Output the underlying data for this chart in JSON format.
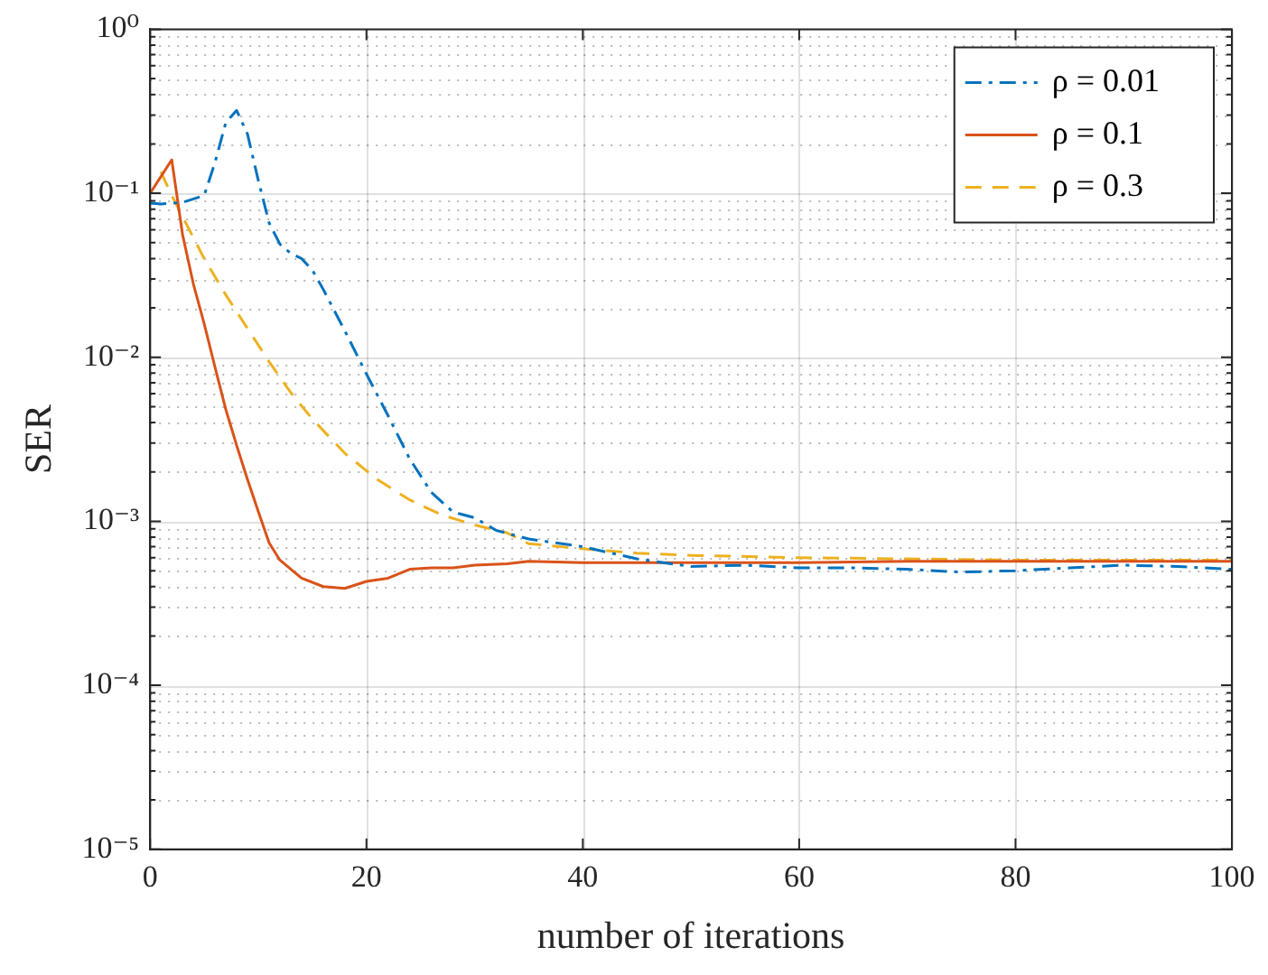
{
  "chart_data": {
    "type": "line",
    "xlabel": "number of iterations",
    "ylabel": "SER",
    "log": "y",
    "grid": true,
    "legend": "top right",
    "marker": "none",
    "xlim": [
      0,
      100
    ],
    "xticks": [
      0,
      20,
      40,
      60,
      80,
      100
    ],
    "ylim": [
      1e-05,
      1
    ],
    "yticks": [
      {
        "value": 1e-05,
        "label": "10⁻⁵"
      },
      {
        "value": 2e-05,
        "label": null
      },
      {
        "value": 3e-05,
        "label": null
      },
      {
        "value": 4e-05,
        "label": null
      },
      {
        "value": 5e-05,
        "label": null
      },
      {
        "value": 6e-05,
        "label": null
      },
      {
        "value": 7e-05,
        "label": null
      },
      {
        "value": 8e-05,
        "label": null
      },
      {
        "value": 9e-05,
        "label": null
      },
      {
        "value": 0.0001,
        "label": "10⁻⁴"
      },
      {
        "value": 0.0002,
        "label": null
      },
      {
        "value": 0.0003,
        "label": null
      },
      {
        "value": 0.0004,
        "label": null
      },
      {
        "value": 0.0005,
        "label": null
      },
      {
        "value": 0.0006,
        "label": null
      },
      {
        "value": 0.0007,
        "label": null
      },
      {
        "value": 0.0008,
        "label": null
      },
      {
        "value": 0.0009,
        "label": null
      },
      {
        "value": 0.001,
        "label": "10⁻³"
      },
      {
        "value": 0.002,
        "label": null
      },
      {
        "value": 0.003,
        "label": null
      },
      {
        "value": 0.004,
        "label": null
      },
      {
        "value": 0.005,
        "label": null
      },
      {
        "value": 0.006,
        "label": null
      },
      {
        "value": 0.007,
        "label": null
      },
      {
        "value": 0.008,
        "label": null
      },
      {
        "value": 0.009,
        "label": null
      },
      {
        "value": 0.01,
        "label": "10⁻²"
      },
      {
        "value": 0.02,
        "label": null
      },
      {
        "value": 0.03,
        "label": null
      },
      {
        "value": 0.04,
        "label": null
      },
      {
        "value": 0.05,
        "label": null
      },
      {
        "value": 0.06,
        "label": null
      },
      {
        "value": 0.07,
        "label": null
      },
      {
        "value": 0.08,
        "label": null
      },
      {
        "value": 0.09,
        "label": null
      },
      {
        "value": 0.1,
        "label": "10⁻¹"
      },
      {
        "value": 0.2,
        "label": null
      },
      {
        "value": 0.3,
        "label": null
      },
      {
        "value": 0.4,
        "label": null
      },
      {
        "value": 0.5,
        "label": null
      },
      {
        "value": 0.6,
        "label": null
      },
      {
        "value": 0.7,
        "label": null
      },
      {
        "value": 0.8,
        "label": null
      },
      {
        "value": 0.9,
        "label": null
      },
      {
        "value": 1,
        "label": "10⁰"
      }
    ],
    "series": [
      {
        "name": "ρ = 0.01",
        "color": "#0072bd",
        "line_style": "dashdot",
        "x": [
          0,
          1,
          3,
          5,
          6,
          7,
          8,
          9,
          10,
          11,
          12,
          13,
          14,
          15,
          16,
          18,
          20,
          22,
          24,
          26,
          28,
          30,
          32,
          35,
          40,
          45,
          50,
          55,
          60,
          65,
          70,
          75,
          80,
          85,
          90,
          95,
          100
        ],
        "values": [
          0.087,
          0.086,
          0.088,
          0.097,
          0.154,
          0.27,
          0.32,
          0.23,
          0.12,
          0.066,
          0.049,
          0.043,
          0.04,
          0.034,
          0.026,
          0.0145,
          0.0079,
          0.0044,
          0.0024,
          0.0015,
          0.00114,
          0.00105,
          0.00088,
          0.00078,
          0.0007,
          0.00059,
          0.00053,
          0.00054,
          0.00052,
          0.00052,
          0.00051,
          0.00049,
          0.0005,
          0.00052,
          0.00054,
          0.00053,
          0.00051
        ]
      },
      {
        "name": "ρ = 0.1",
        "color": "#d95319",
        "line_style": "solid",
        "x": [
          0,
          2,
          3,
          4,
          5,
          6,
          7,
          8,
          9,
          10,
          11,
          12,
          14,
          16,
          18,
          20,
          22,
          24,
          26,
          28,
          30,
          33,
          35,
          40,
          50,
          60,
          70,
          80,
          90,
          100
        ],
        "values": [
          0.1,
          0.16,
          0.056,
          0.028,
          0.016,
          0.0087,
          0.0048,
          0.0029,
          0.0018,
          0.00115,
          0.00074,
          0.00058,
          0.00045,
          0.0004,
          0.00039,
          0.00043,
          0.00045,
          0.00051,
          0.00052,
          0.00052,
          0.00054,
          0.00055,
          0.00057,
          0.00056,
          0.00056,
          0.00056,
          0.00057,
          0.00057,
          0.00057,
          0.00057
        ]
      },
      {
        "name": "ρ = 0.3",
        "color": "#edb120",
        "line_style": "dashed",
        "x": [
          1,
          2,
          3,
          5,
          7,
          9,
          11,
          13,
          15,
          18,
          21,
          24,
          27,
          30,
          33,
          35,
          40,
          45,
          50,
          60,
          70,
          80,
          90,
          100
        ],
        "values": [
          0.135,
          0.097,
          0.072,
          0.04,
          0.024,
          0.015,
          0.0094,
          0.0061,
          0.0042,
          0.0026,
          0.0018,
          0.00135,
          0.00109,
          0.00095,
          0.00085,
          0.00073,
          0.00068,
          0.00064,
          0.00062,
          0.0006,
          0.00059,
          0.00058,
          0.00058,
          0.00058
        ]
      }
    ]
  }
}
